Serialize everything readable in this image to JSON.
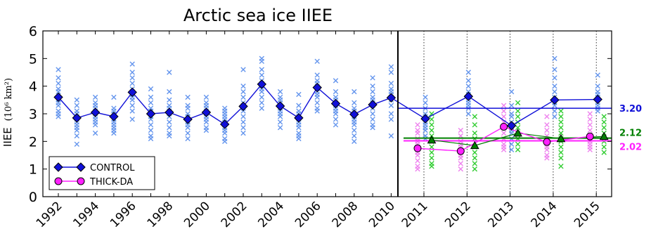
{
  "chart_data": {
    "type": "line",
    "title": "Arctic sea ice IIEE",
    "ylabel": "IIEE",
    "ylabel_unit": "(10⁶ km²)",
    "ylim": [
      0,
      6
    ],
    "yticks": [
      0,
      1,
      2,
      3,
      4,
      5,
      6
    ],
    "grid": false,
    "legend_position": "bottom-left",
    "colors": {
      "control": "#1010d8",
      "control_light": "#6495ed",
      "thick": "#ff20ff",
      "thick_light": "#ee82ee",
      "green": "#008000",
      "green_light": "#32cd32"
    },
    "hindcast": {
      "years": [
        1992,
        1993,
        1994,
        1995,
        1996,
        1997,
        1998,
        1999,
        2000,
        2001,
        2002,
        2003,
        2004,
        2005,
        2006,
        2007,
        2008,
        2009,
        2010
      ],
      "tick_labels": [
        "1992",
        "1994",
        "1996",
        "1998",
        "2000",
        "2002",
        "2004",
        "2006",
        "2008",
        "2010"
      ],
      "control_mean": [
        3.6,
        2.85,
        3.05,
        2.9,
        3.78,
        3.0,
        3.05,
        2.8,
        3.05,
        2.62,
        3.27,
        4.07,
        3.28,
        2.85,
        3.95,
        3.37,
        2.98,
        3.33,
        3.58
      ],
      "control_members": [
        [
          4.6,
          4.3,
          4.1,
          3.9,
          3.8,
          3.6,
          3.5,
          3.4,
          3.3,
          3.1,
          3.0,
          2.9
        ],
        [
          3.5,
          3.3,
          3.1,
          3.0,
          2.9,
          2.8,
          2.7,
          2.6,
          2.5,
          2.4,
          2.2,
          1.9
        ],
        [
          3.6,
          3.4,
          3.3,
          3.2,
          3.1,
          3.0,
          2.9,
          2.8,
          2.7,
          2.6,
          2.3
        ],
        [
          3.6,
          3.2,
          3.1,
          3.0,
          2.9,
          2.8,
          2.7,
          2.6,
          2.5,
          2.4,
          2.3
        ],
        [
          4.8,
          4.5,
          4.3,
          4.1,
          3.9,
          3.8,
          3.7,
          3.6,
          3.5,
          3.3,
          3.1,
          2.8
        ],
        [
          3.9,
          3.6,
          3.4,
          3.2,
          3.1,
          3.0,
          2.9,
          2.8,
          2.6,
          2.4,
          2.2,
          2.1
        ],
        [
          4.5,
          3.8,
          3.5,
          3.3,
          3.2,
          3.1,
          3.0,
          2.9,
          2.7,
          2.5,
          2.3,
          2.2
        ],
        [
          3.6,
          3.3,
          3.2,
          3.0,
          2.9,
          2.8,
          2.7,
          2.6,
          2.5,
          2.3,
          2.1
        ],
        [
          3.6,
          3.4,
          3.3,
          3.2,
          3.1,
          3.0,
          2.9,
          2.8,
          2.7,
          2.5,
          2.4
        ],
        [
          3.2,
          3.1,
          3.0,
          2.9,
          2.8,
          2.7,
          2.6,
          2.5,
          2.4,
          2.3,
          2.1,
          2.0
        ],
        [
          4.6,
          4.0,
          3.8,
          3.6,
          3.4,
          3.3,
          3.2,
          3.1,
          2.9,
          2.7,
          2.5,
          2.3
        ],
        [
          5.0,
          4.9,
          4.6,
          4.4,
          4.2,
          4.1,
          4.0,
          3.9,
          3.8,
          3.6,
          3.4,
          3.2
        ],
        [
          3.8,
          3.6,
          3.5,
          3.4,
          3.3,
          3.2,
          3.1,
          3.0,
          2.9,
          2.7,
          2.5
        ],
        [
          3.7,
          3.3,
          3.1,
          3.0,
          2.9,
          2.8,
          2.7,
          2.6,
          2.5,
          2.3,
          2.2,
          2.1
        ],
        [
          4.9,
          4.4,
          4.2,
          4.1,
          4.0,
          3.9,
          3.8,
          3.7,
          3.6,
          3.4,
          3.2,
          3.1
        ],
        [
          4.2,
          3.8,
          3.6,
          3.5,
          3.4,
          3.3,
          3.2,
          3.1,
          3.0,
          2.8,
          2.6
        ],
        [
          3.8,
          3.4,
          3.2,
          3.1,
          3.0,
          2.9,
          2.8,
          2.7,
          2.6,
          2.4,
          2.2,
          2.0
        ],
        [
          4.3,
          4.0,
          3.8,
          3.6,
          3.5,
          3.4,
          3.3,
          3.2,
          3.0,
          2.8,
          2.6,
          2.5
        ],
        [
          4.7,
          4.5,
          4.1,
          3.9,
          3.8,
          3.7,
          3.6,
          3.5,
          3.3,
          3.0,
          2.8,
          2.2
        ]
      ]
    },
    "forecast": {
      "years": [
        "2011",
        "2012",
        "2013",
        "2014",
        "2015"
      ],
      "control_mean": [
        2.82,
        3.63,
        2.57,
        3.5,
        3.52
      ],
      "thick_mean": [
        1.75,
        1.65,
        2.53,
        1.98,
        2.18
      ],
      "green_mean": [
        2.05,
        1.85,
        2.3,
        2.1,
        2.18
      ],
      "control_members": [
        [
          3.6,
          3.4,
          3.2,
          3.0,
          2.9,
          2.8,
          2.7,
          2.6,
          2.5,
          2.4,
          2.2,
          2.1
        ],
        [
          4.5,
          4.2,
          4.0,
          3.8,
          3.7,
          3.6,
          3.5,
          3.4,
          3.3,
          3.2,
          3.0
        ],
        [
          3.8,
          3.3,
          3.0,
          2.9,
          2.7,
          2.6,
          2.5,
          2.4,
          2.3,
          2.1,
          1.9,
          1.7
        ],
        [
          5.0,
          4.6,
          4.3,
          4.0,
          3.8,
          3.6,
          3.5,
          3.4,
          3.3,
          3.1,
          2.9
        ],
        [
          4.4,
          4.0,
          3.8,
          3.7,
          3.6,
          3.5,
          3.4,
          3.3,
          3.2,
          3.1
        ]
      ],
      "thick_members": [
        [
          2.6,
          2.4,
          2.3,
          2.1,
          2.0,
          1.9,
          1.8,
          1.7,
          1.6,
          1.5,
          1.3,
          1.1,
          1.0
        ],
        [
          2.4,
          2.2,
          2.0,
          1.9,
          1.8,
          1.7,
          1.6,
          1.5,
          1.4,
          1.2,
          1.0
        ],
        [
          3.3,
          3.1,
          2.9,
          2.7,
          2.5,
          2.3,
          2.1,
          1.9,
          1.8,
          1.7
        ],
        [
          2.9,
          2.6,
          2.4,
          2.2,
          2.1,
          2.0,
          1.9,
          1.8,
          1.7,
          1.5,
          1.4
        ],
        [
          3.0,
          2.8,
          2.6,
          2.4,
          2.2,
          2.0,
          1.9,
          1.8,
          1.7
        ]
      ],
      "green_members": [
        [
          3.0,
          2.8,
          2.6,
          2.4,
          2.2,
          2.0,
          1.8,
          1.6,
          1.4,
          1.2,
          1.1
        ],
        [
          2.9,
          2.6,
          2.3,
          2.1,
          1.8,
          1.6,
          1.4,
          1.2,
          1.0
        ],
        [
          3.4,
          3.1,
          2.9,
          2.7,
          2.5,
          2.3,
          2.1,
          1.9,
          1.7
        ],
        [
          3.1,
          2.9,
          2.7,
          2.5,
          2.3,
          2.1,
          2.0,
          1.8,
          1.6,
          1.4,
          1.1
        ],
        [
          2.9,
          2.7,
          2.5,
          2.3,
          2.1,
          2.0,
          1.8,
          1.6
        ]
      ],
      "control_hline": 3.2,
      "thick_hline": 2.02,
      "green_hline": 2.12,
      "control_hline_label": "3.20",
      "thick_hline_label": "2.02",
      "green_hline_label": "2.12"
    },
    "legend": [
      {
        "label": "CONTROL",
        "marker": "diamond",
        "color": "#1010d8"
      },
      {
        "label": "THICK-DA",
        "marker": "circle",
        "color": "#ff20ff"
      }
    ]
  }
}
